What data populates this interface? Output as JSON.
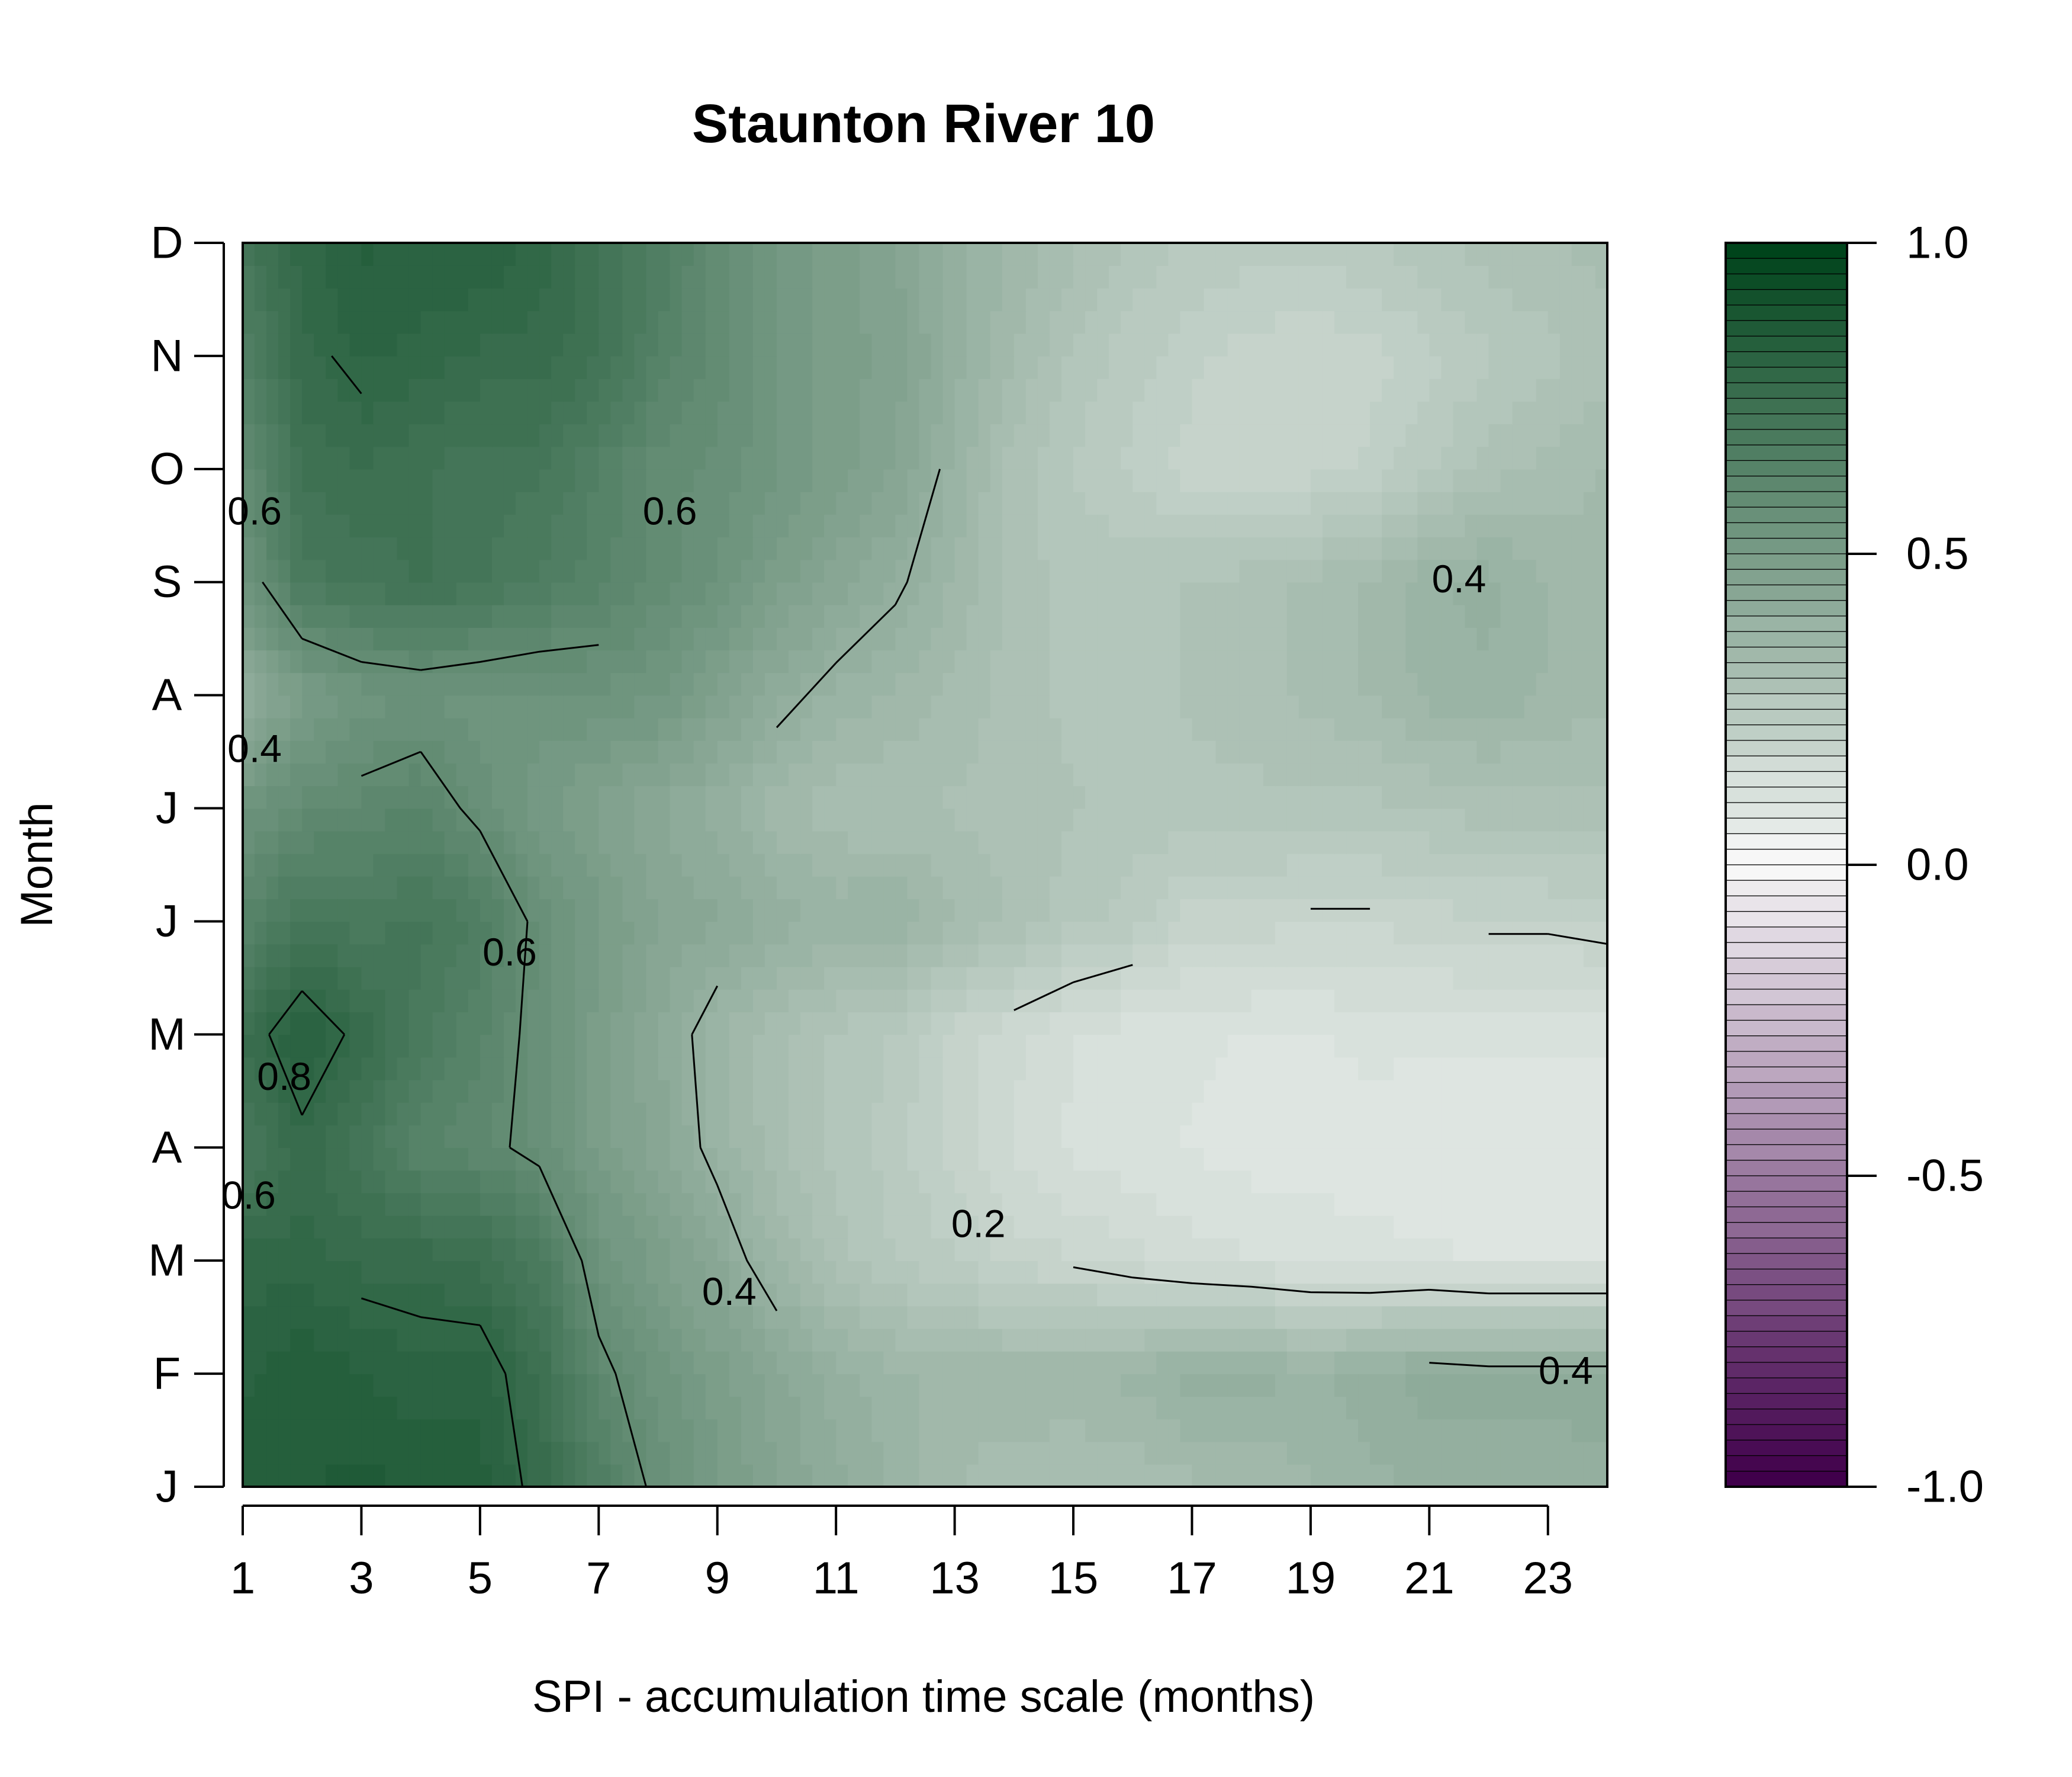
{
  "chart_data": {
    "type": "heatmap",
    "title": "Staunton River 10",
    "xlabel": "SPI - accumulation time scale (months)",
    "ylabel": "Month",
    "x_ticks": [
      "1",
      "3",
      "5",
      "7",
      "9",
      "11",
      "13",
      "15",
      "17",
      "19",
      "21",
      "23"
    ],
    "y_ticks": [
      "J",
      "F",
      "M",
      "A",
      "M",
      "J",
      "J",
      "A",
      "S",
      "O",
      "N",
      "D"
    ],
    "xlim": [
      1,
      24
    ],
    "ylim": [
      1,
      12
    ],
    "colorbar": {
      "ticks": [
        "1.0",
        "0.5",
        "0.0",
        "-0.5",
        "-1.0"
      ],
      "range": [
        -1,
        1
      ],
      "colors": {
        "low": "#40004b",
        "mid": "#f7f7f7",
        "high": "#00441b"
      }
    },
    "contour_levels": [
      0.2,
      0.4,
      0.6,
      0.8
    ],
    "contour_labels": [
      {
        "text": "0.6",
        "x": 1.2,
        "y": 9.6
      },
      {
        "text": "0.4",
        "x": 1.2,
        "y": 7.5
      },
      {
        "text": "0.6",
        "x": 8.2,
        "y": 9.6
      },
      {
        "text": "0.6",
        "x": 5.5,
        "y": 5.7
      },
      {
        "text": "0.8",
        "x": 1.7,
        "y": 4.6
      },
      {
        "text": "0.6",
        "x": 1.1,
        "y": 3.55
      },
      {
        "text": "0.2",
        "x": 13.4,
        "y": 3.3
      },
      {
        "text": "0.4",
        "x": 9.2,
        "y": 2.7
      },
      {
        "text": "0.4",
        "x": 21.5,
        "y": 9.0
      },
      {
        "text": "0.4",
        "x": 23.3,
        "y": 2.0
      }
    ],
    "values": [
      [
        0.85,
        0.86,
        0.87,
        0.86,
        0.85,
        0.78,
        0.68,
        0.58,
        0.52,
        0.46,
        0.42,
        0.38,
        0.34,
        0.32,
        0.31,
        0.32,
        0.33,
        0.34,
        0.36,
        0.38,
        0.39,
        0.4,
        0.4,
        0.41
      ],
      [
        0.83,
        0.86,
        0.84,
        0.82,
        0.83,
        0.76,
        0.62,
        0.55,
        0.5,
        0.45,
        0.4,
        0.37,
        0.35,
        0.36,
        0.36,
        0.37,
        0.4,
        0.4,
        0.38,
        0.4,
        0.43,
        0.42,
        0.42,
        0.42
      ],
      [
        0.8,
        0.8,
        0.78,
        0.78,
        0.76,
        0.7,
        0.56,
        0.5,
        0.44,
        0.36,
        0.3,
        0.26,
        0.24,
        0.2,
        0.19,
        0.17,
        0.15,
        0.14,
        0.13,
        0.12,
        0.12,
        0.11,
        0.11,
        0.11
      ],
      [
        0.7,
        0.78,
        0.72,
        0.64,
        0.62,
        0.58,
        0.5,
        0.45,
        0.38,
        0.32,
        0.28,
        0.25,
        0.2,
        0.16,
        0.13,
        0.12,
        0.11,
        0.1,
        0.1,
        0.1,
        0.09,
        0.09,
        0.09,
        0.09
      ],
      [
        0.76,
        0.85,
        0.78,
        0.7,
        0.64,
        0.58,
        0.5,
        0.44,
        0.37,
        0.32,
        0.28,
        0.26,
        0.2,
        0.17,
        0.14,
        0.12,
        0.12,
        0.11,
        0.11,
        0.12,
        0.12,
        0.12,
        0.12,
        0.12
      ],
      [
        0.64,
        0.72,
        0.7,
        0.72,
        0.68,
        0.58,
        0.52,
        0.46,
        0.44,
        0.4,
        0.38,
        0.39,
        0.34,
        0.31,
        0.27,
        0.25,
        0.2,
        0.2,
        0.19,
        0.19,
        0.2,
        0.21,
        0.21,
        0.22
      ],
      [
        0.55,
        0.6,
        0.62,
        0.64,
        0.58,
        0.52,
        0.48,
        0.44,
        0.4,
        0.35,
        0.32,
        0.31,
        0.31,
        0.3,
        0.29,
        0.28,
        0.28,
        0.28,
        0.28,
        0.28,
        0.29,
        0.3,
        0.3,
        0.3
      ],
      [
        0.4,
        0.5,
        0.55,
        0.56,
        0.55,
        0.55,
        0.56,
        0.54,
        0.48,
        0.42,
        0.38,
        0.36,
        0.33,
        0.3,
        0.28,
        0.28,
        0.29,
        0.3,
        0.32,
        0.34,
        0.37,
        0.38,
        0.36,
        0.34
      ],
      [
        0.55,
        0.7,
        0.72,
        0.74,
        0.72,
        0.68,
        0.65,
        0.6,
        0.56,
        0.5,
        0.45,
        0.41,
        0.36,
        0.3,
        0.28,
        0.28,
        0.29,
        0.3,
        0.32,
        0.34,
        0.38,
        0.4,
        0.36,
        0.34
      ],
      [
        0.6,
        0.74,
        0.76,
        0.74,
        0.72,
        0.72,
        0.66,
        0.6,
        0.58,
        0.54,
        0.5,
        0.46,
        0.38,
        0.3,
        0.26,
        0.23,
        0.2,
        0.19,
        0.2,
        0.22,
        0.26,
        0.3,
        0.32,
        0.34
      ],
      [
        0.66,
        0.78,
        0.82,
        0.8,
        0.78,
        0.78,
        0.74,
        0.66,
        0.6,
        0.54,
        0.5,
        0.48,
        0.4,
        0.34,
        0.28,
        0.25,
        0.22,
        0.2,
        0.19,
        0.2,
        0.23,
        0.26,
        0.28,
        0.3
      ],
      [
        0.72,
        0.8,
        0.84,
        0.84,
        0.84,
        0.8,
        0.74,
        0.68,
        0.6,
        0.54,
        0.5,
        0.46,
        0.4,
        0.36,
        0.32,
        0.28,
        0.26,
        0.25,
        0.25,
        0.26,
        0.28,
        0.3,
        0.31,
        0.32
      ]
    ]
  }
}
